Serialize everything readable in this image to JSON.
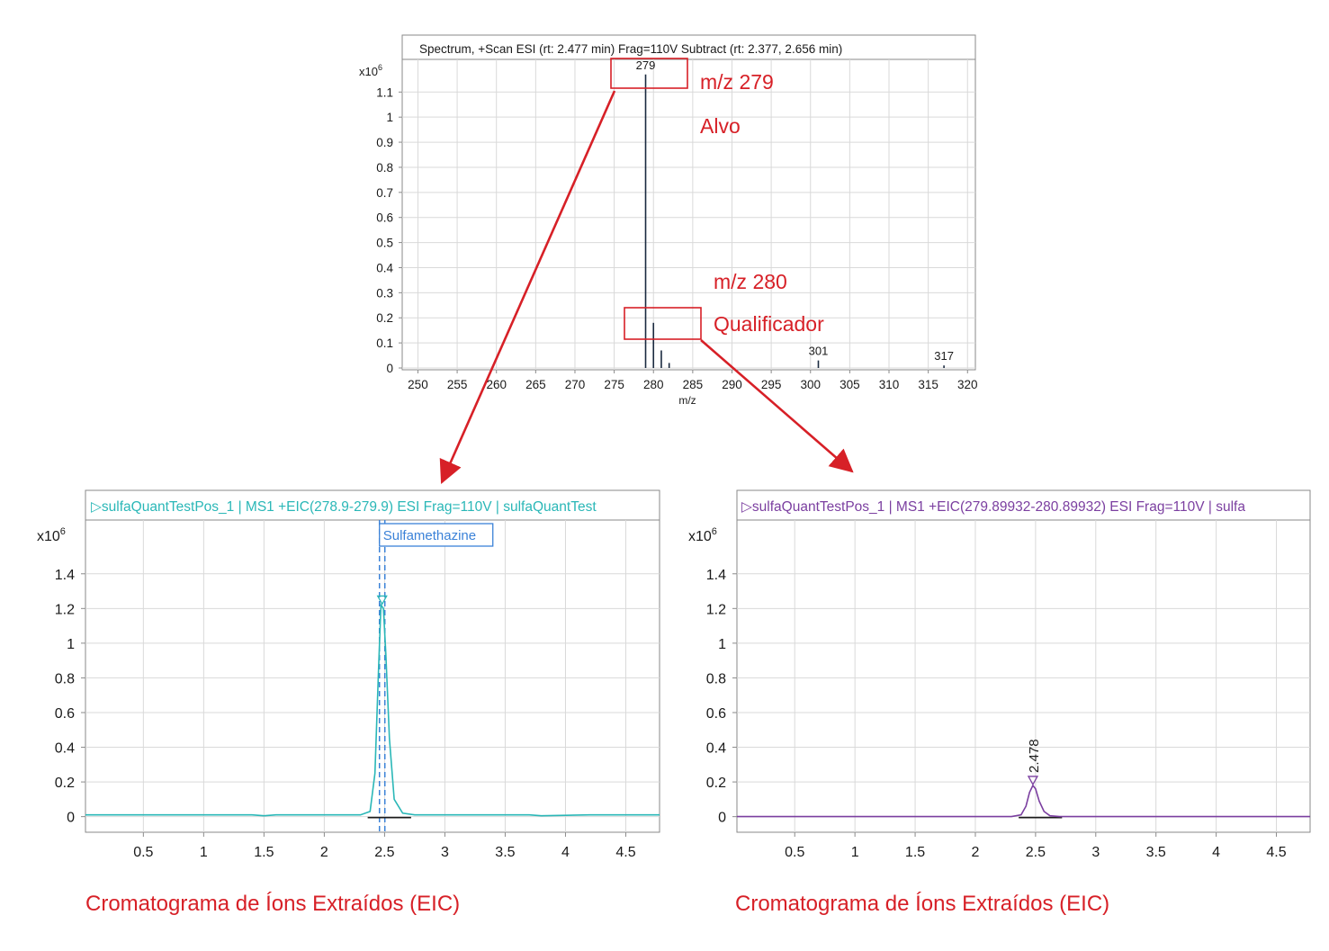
{
  "colors": {
    "annotation": "#d72027",
    "eic_left": "#2ab7b7",
    "eic_right": "#7b3fa0",
    "marker_blue": "#3b82d8",
    "grid": "#d9d9d9",
    "frame": "#8a8a8a",
    "stick": "#1a2a40"
  },
  "annotations": {
    "m279": "m/z 279",
    "alvo": "Alvo",
    "m280": "m/z 280",
    "qualificador": "Qualificador",
    "caption_left": "Cromatograma de Íons Extraídos (EIC)",
    "caption_right": "Cromatograma de Íons Extraídos (EIC)"
  },
  "chart_data": [
    {
      "type": "bar",
      "title": "Spectrum, +Scan ESI (rt: 2.477 min) Frag=110V Subtract (rt: 2.377, 2.656 min)",
      "xlabel": "m/z",
      "ylabel": "",
      "y_multiplier": "x10",
      "y_exponent": "6",
      "xlim": [
        248,
        321
      ],
      "ylim": [
        0,
        1.18
      ],
      "xticks": [
        250,
        255,
        260,
        265,
        270,
        275,
        280,
        285,
        290,
        295,
        300,
        305,
        310,
        315,
        320
      ],
      "yticks": [
        0,
        0.1,
        0.2,
        0.3,
        0.4,
        0.5,
        0.6,
        0.7,
        0.8,
        0.9,
        1,
        1.1
      ],
      "grid": true,
      "peaks": [
        {
          "mz": 279,
          "intensity": 1.17,
          "label": "279"
        },
        {
          "mz": 280,
          "intensity": 0.18,
          "label": ""
        },
        {
          "mz": 281,
          "intensity": 0.07,
          "label": ""
        },
        {
          "mz": 282,
          "intensity": 0.02,
          "label": ""
        },
        {
          "mz": 301,
          "intensity": 0.03,
          "label": "301"
        },
        {
          "mz": 317,
          "intensity": 0.01,
          "label": "317"
        }
      ]
    },
    {
      "type": "line",
      "title": "sulfaQuantTestPos_1 | MS1  +EIC(278.9-279.9) ESI Frag=110V | sulfaQuantTest",
      "y_multiplier": "x10",
      "y_exponent": "6",
      "xlim": [
        0.02,
        4.78
      ],
      "ylim": [
        -0.09,
        1.71
      ],
      "xticks": [
        0.5,
        1,
        1.5,
        2,
        2.5,
        3,
        3.5,
        4,
        4.5
      ],
      "yticks": [
        0,
        0.2,
        0.4,
        0.6,
        0.8,
        1,
        1.2,
        1.4
      ],
      "grid": true,
      "peak_label": "Sulfamethazine",
      "marker_rt": 2.48,
      "series": [
        {
          "x": [
            0.02,
            1.4,
            1.5,
            1.6,
            2.0,
            2.3,
            2.38,
            2.42,
            2.45,
            2.47,
            2.49,
            2.51,
            2.54,
            2.58,
            2.65,
            2.75,
            3.2,
            3.7,
            3.8,
            4.2,
            4.78
          ],
          "y": [
            0.01,
            0.01,
            0.005,
            0.01,
            0.01,
            0.01,
            0.03,
            0.25,
            0.85,
            1.22,
            1.2,
            0.95,
            0.45,
            0.1,
            0.02,
            0.01,
            0.01,
            0.01,
            0.005,
            0.01,
            0.01
          ]
        }
      ]
    },
    {
      "type": "line",
      "title": "sulfaQuantTestPos_1 | MS1  +EIC(279.89932-280.89932) ESI Frag=110V | sulfa",
      "y_multiplier": "x10",
      "y_exponent": "6",
      "xlim": [
        0.02,
        4.78
      ],
      "ylim": [
        -0.09,
        1.71
      ],
      "xticks": [
        0.5,
        1,
        1.5,
        2,
        2.5,
        3,
        3.5,
        4,
        4.5
      ],
      "yticks": [
        0,
        0.2,
        0.4,
        0.6,
        0.8,
        1,
        1.2,
        1.4
      ],
      "grid": true,
      "peak_label": "2.478",
      "marker_rt": 2.478,
      "series": [
        {
          "x": [
            0.02,
            2.3,
            2.38,
            2.42,
            2.45,
            2.478,
            2.5,
            2.53,
            2.57,
            2.62,
            2.7,
            4.78
          ],
          "y": [
            0.0,
            0.0,
            0.01,
            0.06,
            0.14,
            0.18,
            0.16,
            0.09,
            0.03,
            0.005,
            0.0,
            0.0
          ]
        }
      ]
    }
  ]
}
